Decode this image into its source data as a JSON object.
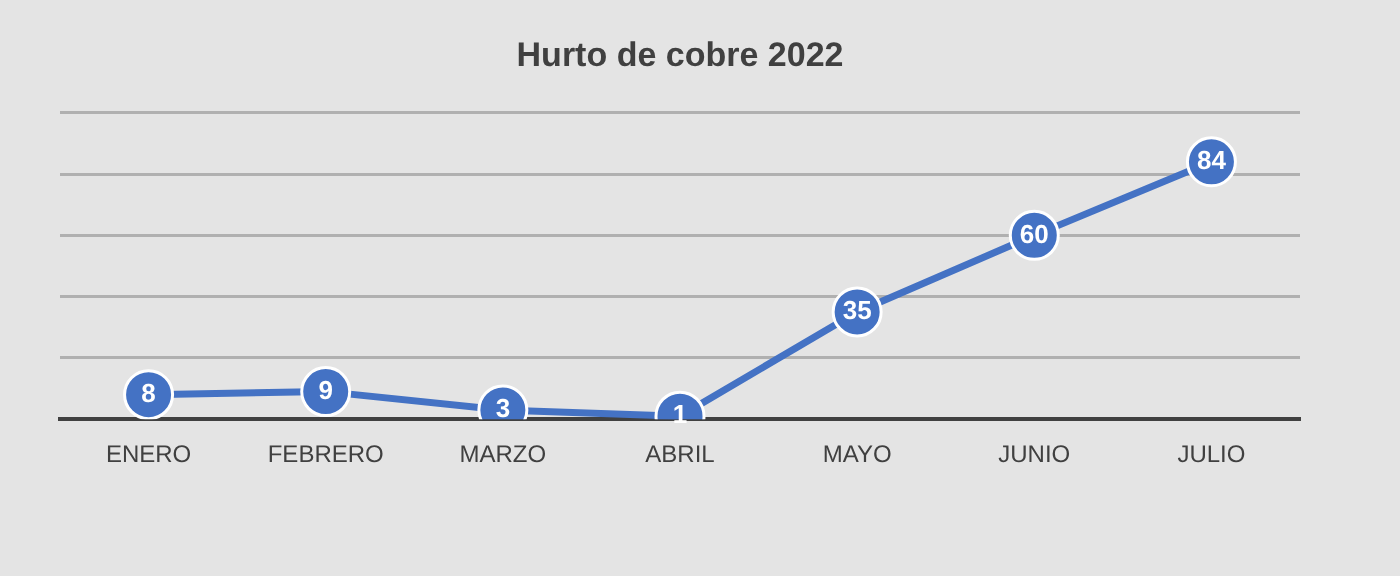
{
  "chart_data": {
    "type": "line",
    "title": "Hurto de cobre 2022",
    "categories": [
      "ENERO",
      "FEBRERO",
      "MARZO",
      "ABRIL",
      "MAYO",
      "JUNIO",
      "JULIO"
    ],
    "series": [
      {
        "color": "#4472c4",
        "values": [
          8,
          9,
          3,
          1,
          35,
          60,
          84
        ]
      }
    ],
    "ylim": [
      0,
      100
    ],
    "yticks": [
      {
        "value": 0,
        "label": null
      },
      {
        "value": 20,
        "label": null
      },
      {
        "value": 40,
        "label": null
      },
      {
        "value": 60,
        "label": null
      },
      {
        "value": 80,
        "label": null
      },
      {
        "value": 100,
        "label": null
      }
    ],
    "tick_labels": "x",
    "grid": "y",
    "legend": false,
    "marker": "circle",
    "line_style": "solid",
    "data_labels": true
  }
}
